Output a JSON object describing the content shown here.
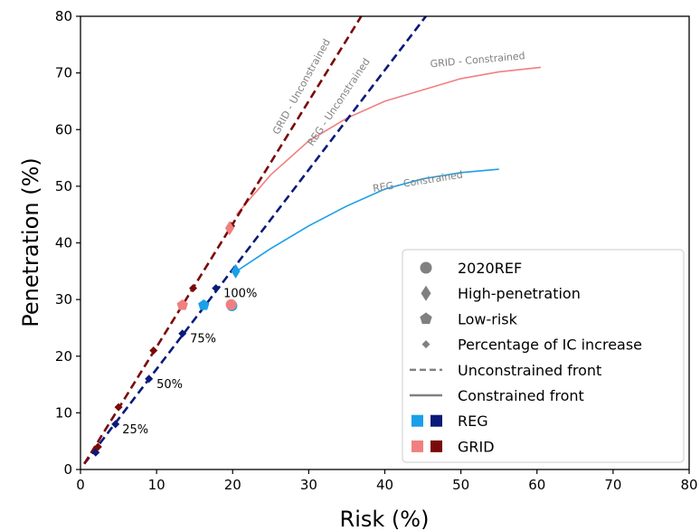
{
  "chart_data": {
    "type": "line",
    "xlabel": "Risk (%)",
    "ylabel": "Penetration (%)",
    "xlim": [
      0,
      80
    ],
    "ylim": [
      0,
      80
    ],
    "xticks": [
      0,
      10,
      20,
      30,
      40,
      50,
      60,
      70,
      80
    ],
    "yticks": [
      0,
      10,
      20,
      30,
      40,
      50,
      60,
      70,
      80
    ],
    "grid": false,
    "legend_position": "lower-right",
    "colors": {
      "reg_light": "#1a9fe8",
      "reg_dark": "#0a1a7a",
      "grid_light": "#f08080",
      "grid_dark": "#7a0a0a",
      "gray": "#808080"
    },
    "series": [
      {
        "key": "grid_unconstrained",
        "label": "GRID - Unconstrained",
        "color": "#7a0a0a",
        "style": "dashed",
        "points": [
          [
            0.5,
            1
          ],
          [
            36.9,
            80
          ]
        ]
      },
      {
        "key": "reg_unconstrained",
        "label": "REG - Unconstrained",
        "color": "#0a1a7a",
        "style": "dashed",
        "points": [
          [
            0.5,
            1
          ],
          [
            45.4,
            80
          ]
        ]
      },
      {
        "key": "grid_constrained",
        "label": "GRID - Constrained",
        "color": "#f08080",
        "style": "solid",
        "points": [
          [
            20.5,
            45
          ],
          [
            25,
            52
          ],
          [
            30,
            58
          ],
          [
            35,
            62
          ],
          [
            40,
            65
          ],
          [
            45,
            67
          ],
          [
            50,
            69
          ],
          [
            55,
            70.2
          ],
          [
            60.5,
            71
          ]
        ]
      },
      {
        "key": "reg_constrained",
        "label": "REG - Constrained",
        "color": "#1a9fe8",
        "style": "solid",
        "points": [
          [
            20.5,
            35
          ],
          [
            25,
            39
          ],
          [
            30,
            43
          ],
          [
            35,
            46.5
          ],
          [
            40,
            49.5
          ],
          [
            45,
            51.3
          ],
          [
            50,
            52.4
          ],
          [
            55,
            53
          ]
        ]
      }
    ],
    "ic_markers_reg": [
      [
        2,
        3
      ],
      [
        4.6,
        8
      ],
      [
        9,
        16
      ],
      [
        13.4,
        24
      ],
      [
        17.8,
        32
      ]
    ],
    "ic_markers_grid": [
      [
        2.3,
        4
      ],
      [
        5,
        11
      ],
      [
        9.6,
        21
      ],
      [
        14.8,
        32
      ],
      [
        19.8,
        43
      ]
    ],
    "ic_labels": [
      {
        "text": "25%",
        "x": 5.5,
        "y": 6.4
      },
      {
        "text": "50%",
        "x": 10,
        "y": 14.4
      },
      {
        "text": "75%",
        "x": 14.4,
        "y": 22.4
      },
      {
        "text": "100%",
        "x": 18.8,
        "y": 30.4
      }
    ],
    "special_points": [
      {
        "shape": "circle",
        "color": "#1a9fe8",
        "x": 19.9,
        "y": 28.9
      },
      {
        "shape": "circle",
        "color": "#f08080",
        "x": 19.8,
        "y": 29.1
      },
      {
        "shape": "diamond",
        "color": "#1a9fe8",
        "x": 20.4,
        "y": 35
      },
      {
        "shape": "diamond",
        "color": "#f08080",
        "x": 19.6,
        "y": 42.6
      },
      {
        "shape": "pentagon",
        "color": "#1a9fe8",
        "x": 16.2,
        "y": 29
      },
      {
        "shape": "pentagon",
        "color": "#f08080",
        "x": 13.4,
        "y": 29
      }
    ],
    "curve_labels": [
      {
        "text": "GRID - Unconstrained",
        "x": 26,
        "y": 59,
        "angle": -61
      },
      {
        "text": "REG - Unconstrained",
        "x": 30.5,
        "y": 57,
        "angle": -56
      },
      {
        "text": "GRID - Constrained",
        "x": 46,
        "y": 71,
        "angle": -5
      },
      {
        "text": "REG - Constrained",
        "x": 38.5,
        "y": 49,
        "angle": -9
      }
    ],
    "legend": [
      {
        "label": "2020REF",
        "icon": "circle"
      },
      {
        "label": "High-penetration",
        "icon": "diamond"
      },
      {
        "label": "Low-risk",
        "icon": "pentagon"
      },
      {
        "label": "Percentage of IC increase",
        "icon": "small-diamond"
      },
      {
        "label": "Unconstrained front",
        "icon": "dashed-line"
      },
      {
        "label": "Constrained front",
        "icon": "solid-line"
      },
      {
        "label": "REG",
        "icon": "reg-squares"
      },
      {
        "label": "GRID",
        "icon": "grid-squares"
      }
    ]
  }
}
